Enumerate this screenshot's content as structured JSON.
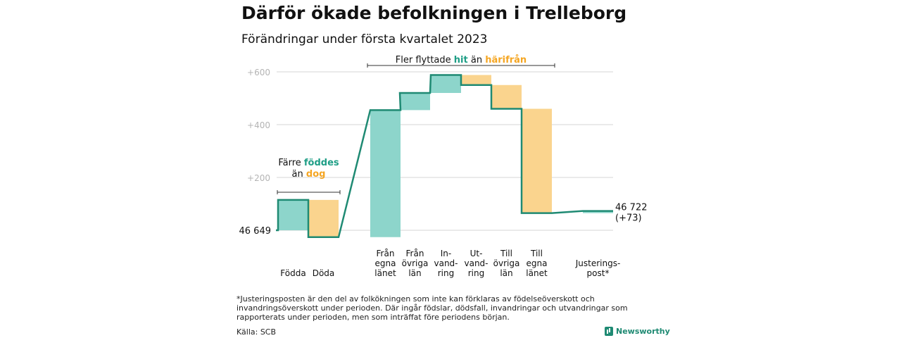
{
  "title": "Därför ökade befolkningen i Trelleborg",
  "subtitle": "Förändringar under första kvartalet 2023",
  "footnote": "*Justeringsposten är den del av folkökningen som inte kan förklaras av födelseöverskott och invandringsöverskott under perioden. Där ingår födslar, dödsfall, invandringar och utvandringar som rapporterats under perioden, men som inträffat före periodens början.",
  "source": "Källa: SCB",
  "brand": "Newsworthy",
  "colors": {
    "increase": "#8dd5cb",
    "decrease": "#fad48e",
    "line": "#1f8a73",
    "hit": "#1f9e86",
    "dar": "#f5a623",
    "grid": "#d6d6d6",
    "tick": "#b4b4b4"
  },
  "chart_data": {
    "type": "waterfall",
    "ylim": [
      -30,
      620
    ],
    "yticks": [
      {
        "value": 200,
        "label": "+200"
      },
      {
        "value": 400,
        "label": "+400"
      },
      {
        "value": 600,
        "label": "+600"
      }
    ],
    "start_label": "46 649",
    "end_label": [
      "46 722",
      "(+73)"
    ],
    "steps": [
      {
        "category": [
          "Födda"
        ],
        "from": 0,
        "to": 115,
        "direction": "increase"
      },
      {
        "category": [
          "Döda"
        ],
        "from": 115,
        "to": -26,
        "direction": "decrease"
      },
      {
        "category": [
          "Från",
          "egna",
          "länet"
        ],
        "from": -26,
        "to": 455,
        "direction": "increase"
      },
      {
        "category": [
          "Från",
          "övriga",
          "län"
        ],
        "from": 455,
        "to": 520,
        "direction": "increase"
      },
      {
        "category": [
          "In-",
          "vand-",
          "ring"
        ],
        "from": 520,
        "to": 588,
        "direction": "increase"
      },
      {
        "category": [
          "Ut-",
          "vand-",
          "ring"
        ],
        "from": 588,
        "to": 550,
        "direction": "decrease"
      },
      {
        "category": [
          "Till",
          "övriga",
          "län"
        ],
        "from": 550,
        "to": 460,
        "direction": "decrease"
      },
      {
        "category": [
          "Till",
          "egna",
          "länet"
        ],
        "from": 460,
        "to": 65,
        "direction": "decrease"
      },
      {
        "category": [
          "Justerings-",
          "post*"
        ],
        "from": 65,
        "to": 73,
        "direction": "increase"
      }
    ],
    "annotations": [
      {
        "lines": [
          [
            "Färre ",
            "föddes"
          ],
          [
            "än ",
            "dog"
          ]
        ],
        "span": [
          0,
          1
        ]
      },
      {
        "lines": [
          [
            "Fler flyttade ",
            "hit",
            " än ",
            "härifrån"
          ]
        ],
        "span": [
          2,
          7
        ]
      }
    ]
  }
}
